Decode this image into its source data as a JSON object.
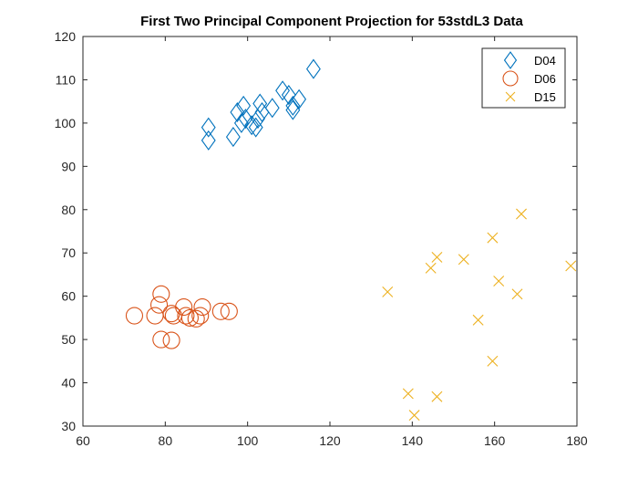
{
  "chart_data": {
    "type": "scatter",
    "title": "First Two Principal Component Projection for 53stdL3 Data",
    "xlabel": "",
    "ylabel": "",
    "xlim": [
      60,
      180
    ],
    "ylim": [
      30,
      120
    ],
    "xticks": [
      60,
      80,
      100,
      120,
      140,
      160,
      180
    ],
    "yticks": [
      30,
      40,
      50,
      60,
      70,
      80,
      90,
      100,
      110,
      120
    ],
    "grid": false,
    "legend_position": "top-right",
    "series": [
      {
        "name": "D04",
        "marker": "diamond",
        "color": "#0072BD",
        "points": [
          [
            90.5,
            96
          ],
          [
            90.5,
            99
          ],
          [
            96.5,
            96.8
          ],
          [
            97.5,
            102.5
          ],
          [
            98.5,
            100
          ],
          [
            99,
            104
          ],
          [
            99.5,
            101
          ],
          [
            101,
            99.5
          ],
          [
            102,
            99
          ],
          [
            102.5,
            101
          ],
          [
            103,
            104.5
          ],
          [
            103.5,
            102.5
          ],
          [
            106,
            103.5
          ],
          [
            108.5,
            107.5
          ],
          [
            110,
            106.5
          ],
          [
            111,
            104
          ],
          [
            111,
            103
          ],
          [
            112.5,
            105.5
          ],
          [
            116,
            112.5
          ]
        ]
      },
      {
        "name": "D06",
        "marker": "circle",
        "color": "#D95319",
        "points": [
          [
            72.5,
            55.5
          ],
          [
            77.5,
            55.5
          ],
          [
            78.5,
            58
          ],
          [
            79,
            60.5
          ],
          [
            79,
            50
          ],
          [
            81.5,
            49.8
          ],
          [
            81.5,
            56
          ],
          [
            82,
            55.5
          ],
          [
            84.5,
            57.5
          ],
          [
            85,
            55.5
          ],
          [
            86,
            55
          ],
          [
            87.5,
            54.8
          ],
          [
            88.5,
            55.5
          ],
          [
            89,
            57.5
          ],
          [
            93.5,
            56.5
          ],
          [
            95.5,
            56.5
          ]
        ]
      },
      {
        "name": "D15",
        "marker": "x",
        "color": "#EDB120",
        "points": [
          [
            134,
            61
          ],
          [
            139,
            37.5
          ],
          [
            140.5,
            32.5
          ],
          [
            144.5,
            66.5
          ],
          [
            146,
            69
          ],
          [
            146,
            36.8
          ],
          [
            152.5,
            68.5
          ],
          [
            156,
            54.5
          ],
          [
            159.5,
            73.5
          ],
          [
            159.5,
            45
          ],
          [
            161,
            63.5
          ],
          [
            165.5,
            60.5
          ],
          [
            166.5,
            79
          ],
          [
            178.5,
            67
          ]
        ]
      }
    ]
  }
}
